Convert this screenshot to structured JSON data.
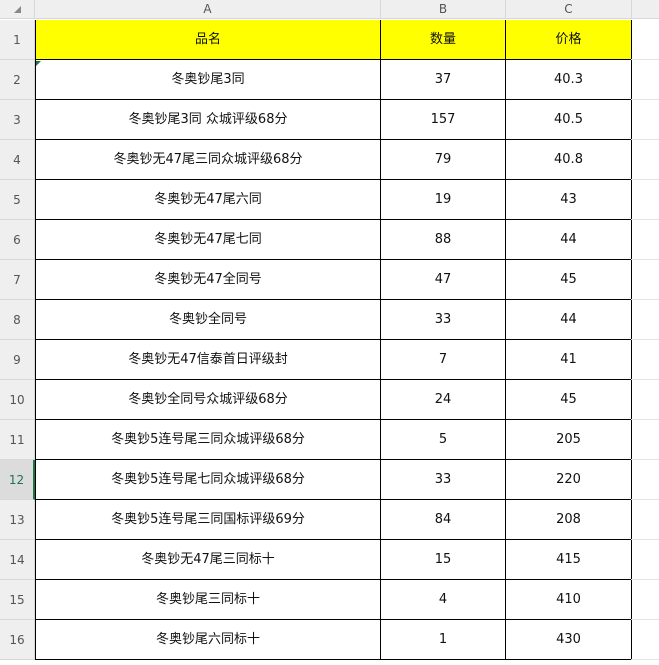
{
  "columns": [
    "A",
    "B",
    "C"
  ],
  "header": {
    "name": "品名",
    "qty": "数量",
    "price": "价格"
  },
  "rows": [
    {
      "n": "2",
      "name": "冬奥钞尾3同",
      "qty": "37",
      "price": "40.3"
    },
    {
      "n": "3",
      "name": "冬奥钞尾3同 众城评级68分",
      "qty": "157",
      "price": "40.5"
    },
    {
      "n": "4",
      "name": "冬奥钞无47尾三同众城评级68分",
      "qty": "79",
      "price": "40.8"
    },
    {
      "n": "5",
      "name": "冬奥钞无47尾六同",
      "qty": "19",
      "price": "43"
    },
    {
      "n": "6",
      "name": "冬奥钞无47尾七同",
      "qty": "88",
      "price": "44"
    },
    {
      "n": "7",
      "name": "冬奥钞无47全同号",
      "qty": "47",
      "price": "45"
    },
    {
      "n": "8",
      "name": "冬奥钞全同号",
      "qty": "33",
      "price": "44"
    },
    {
      "n": "9",
      "name": "冬奥钞无47信泰首日评级封",
      "qty": "7",
      "price": "41"
    },
    {
      "n": "10",
      "name": "冬奥钞全同号众城评级68分",
      "qty": "24",
      "price": "45"
    },
    {
      "n": "11",
      "name": "冬奥钞5连号尾三同众城评级68分",
      "qty": "5",
      "price": "205"
    },
    {
      "n": "12",
      "name": "冬奥钞5连号尾七同众城评级68分",
      "qty": "33",
      "price": "220"
    },
    {
      "n": "13",
      "name": "冬奥钞5连号尾三同国标评级69分",
      "qty": "84",
      "price": "208"
    },
    {
      "n": "14",
      "name": "冬奥钞无47尾三同标十",
      "qty": "15",
      "price": "415"
    },
    {
      "n": "15",
      "name": "冬奥钞尾三同标十",
      "qty": "4",
      "price": "410"
    },
    {
      "n": "16",
      "name": "冬奥钞尾六同标十",
      "qty": "1",
      "price": "430"
    }
  ],
  "header_row_number": "1",
  "selected_row": "12",
  "colors": {
    "header_fill": "#ffff00",
    "selection": "#217346"
  }
}
